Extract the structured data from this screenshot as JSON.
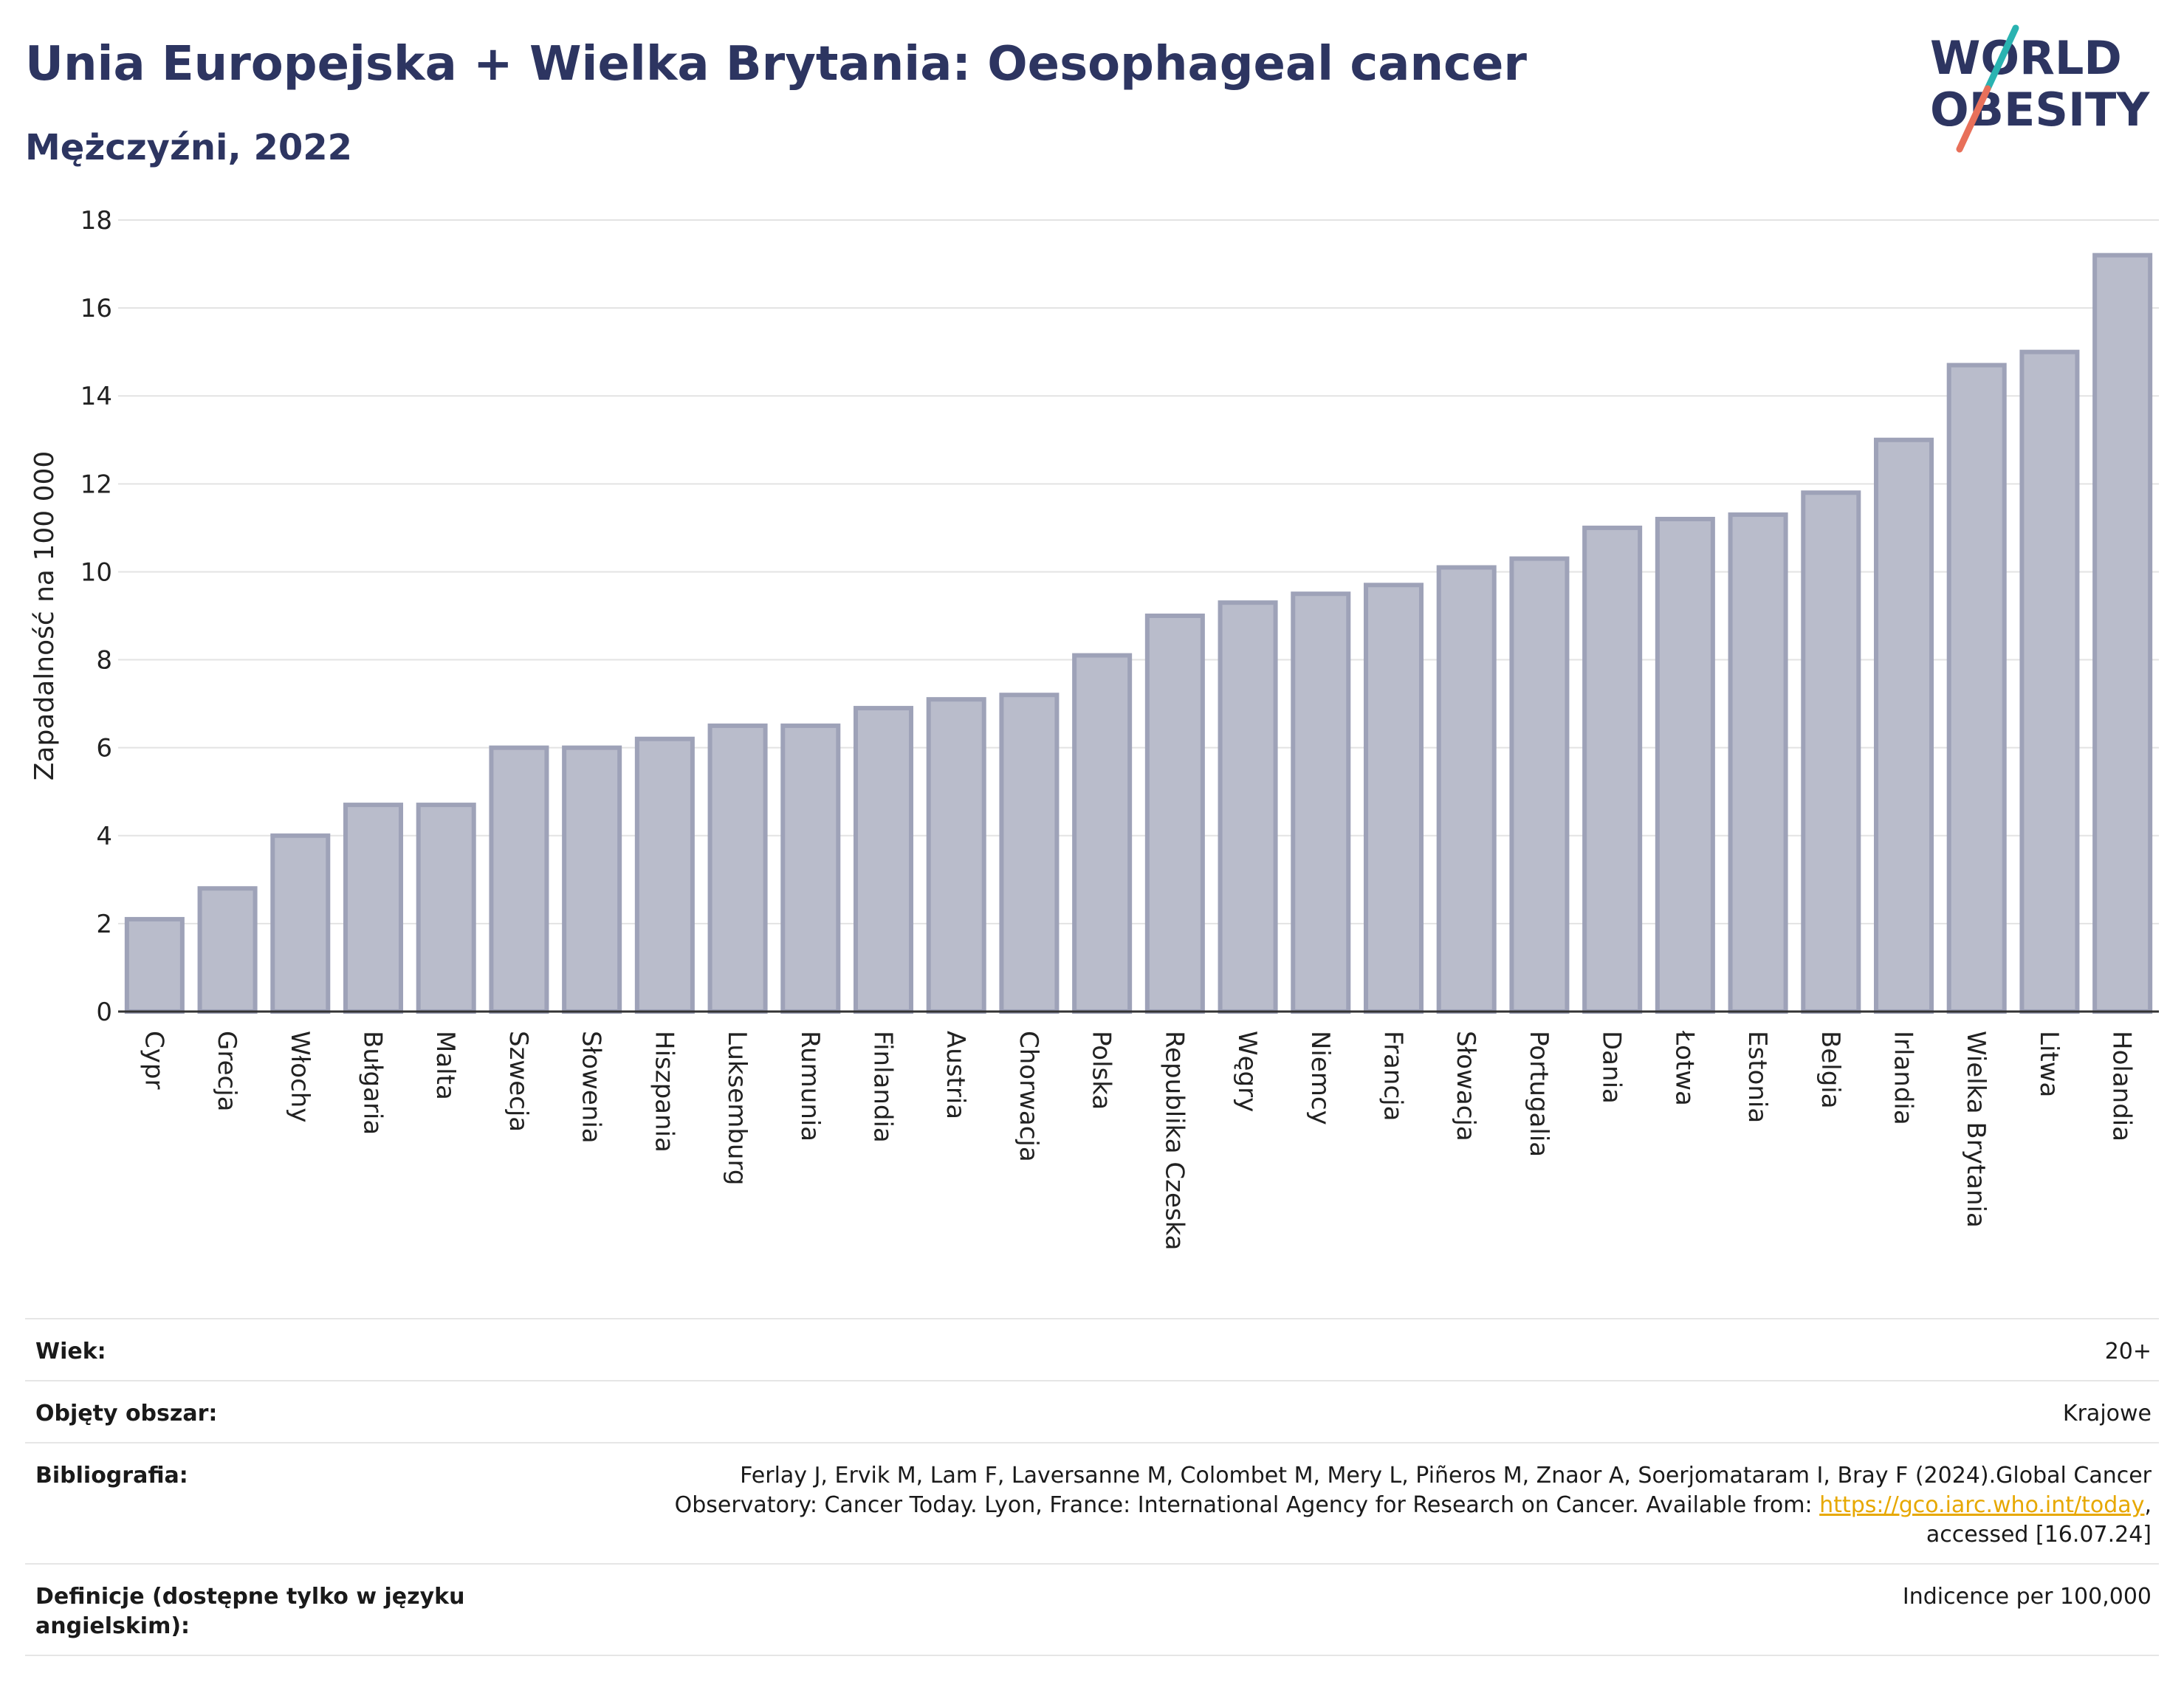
{
  "header": {
    "title": "Unia Europejska + Wielka Brytania: Oesophageal cancer",
    "subtitle": "Mężczyźni, 2022"
  },
  "logo": {
    "line1": "WORLD",
    "line2": "OBESITY",
    "colors": {
      "text": "#2d3561",
      "slash_teal": "#2ab3b1",
      "slash_red": "#e8705a"
    }
  },
  "chart_data": {
    "type": "bar",
    "title": "",
    "xlabel": "",
    "ylabel": "Zapadalność na 100 000",
    "ylim": [
      0,
      18
    ],
    "yticks": [
      0,
      2,
      4,
      6,
      8,
      10,
      12,
      14,
      16,
      18
    ],
    "grid": true,
    "bar_color": "#b9bccb",
    "bar_edge_color": "#9ea2b8",
    "categories": [
      "Cypr",
      "Grecja",
      "Włochy",
      "Bułgaria",
      "Malta",
      "Szwecja",
      "Słowenia",
      "Hiszpania",
      "Luksemburg",
      "Rumunia",
      "Finlandia",
      "Austria",
      "Chorwacja",
      "Polska",
      "Republika Czeska",
      "Węgry",
      "Niemcy",
      "Francja",
      "Słowacja",
      "Portugalia",
      "Dania",
      "Łotwa",
      "Estonia",
      "Belgia",
      "Irlandia",
      "Wielka Brytania",
      "Litwa",
      "Holandia"
    ],
    "values": [
      2.1,
      2.8,
      4.0,
      4.7,
      4.7,
      6.0,
      6.0,
      6.2,
      6.5,
      6.5,
      6.9,
      7.1,
      7.2,
      8.1,
      9.0,
      9.3,
      9.5,
      9.7,
      10.1,
      10.3,
      11.0,
      11.2,
      11.3,
      11.8,
      13.0,
      14.7,
      15.0,
      17.2
    ]
  },
  "info": {
    "age_label": "Wiek:",
    "age_value": "20+",
    "area_label": "Objęty obszar:",
    "area_value": "Krajowe",
    "biblio_label": "Bibliografia:",
    "biblio_line1": "Ferlay J, Ervik M, Lam F, Laversanne M, Colombet M, Mery L, Piñeros M, Znaor A, Soerjomataram I, Bray F (2024).Global Cancer",
    "biblio_line2_pre": "Observatory: Cancer Today. Lyon, France: International Agency for Research on Cancer. Available from: ",
    "biblio_link": "https://gco.iarc.who.int/today",
    "biblio_line2_post": ",",
    "biblio_line3": "accessed [16.07.24]",
    "def_label": "Definicje (dostępne tylko w języku angielskim):",
    "def_value": "Indicence per 100,000"
  }
}
